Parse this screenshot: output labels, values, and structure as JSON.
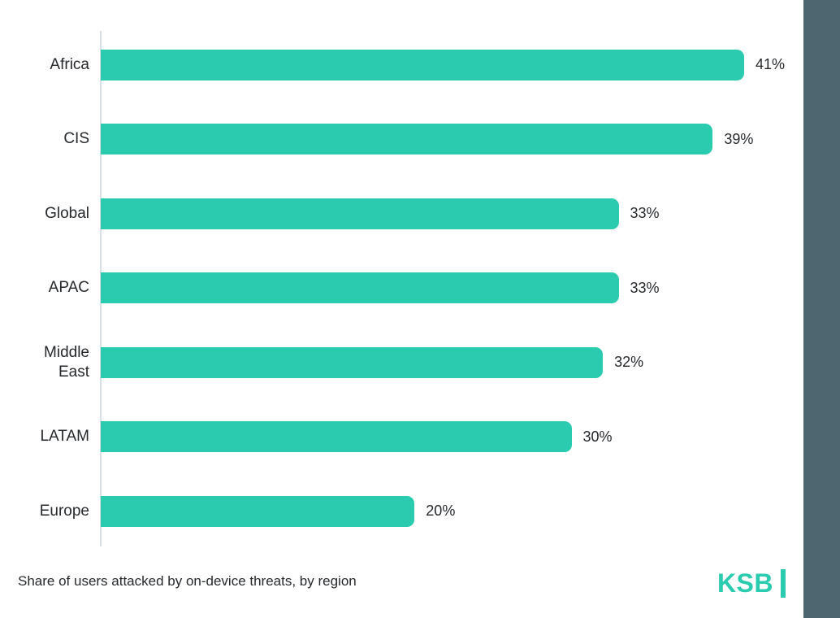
{
  "chart_data": {
    "type": "bar",
    "orientation": "horizontal",
    "categories": [
      "Africa",
      "CIS",
      "Global",
      "APAC",
      "Middle East",
      "LATAM",
      "Europe"
    ],
    "values": [
      41,
      39,
      33,
      33,
      32,
      30,
      20
    ],
    "value_labels": [
      "41%",
      "39%",
      "33%",
      "33%",
      "32%",
      "30%",
      "20%"
    ],
    "title": "",
    "xlabel": "",
    "ylabel": "",
    "xlim": [
      0,
      41
    ],
    "grid": false,
    "legend": "none"
  },
  "caption": "Share of users attacked by on-device threats, by region",
  "logo": {
    "text": "KSB"
  },
  "colors": {
    "bar": "#2BCBB0",
    "stripe": "#4D6670",
    "text": "#26292C",
    "axis_line": "#D9DEE2",
    "background": "#FFFFFF"
  }
}
